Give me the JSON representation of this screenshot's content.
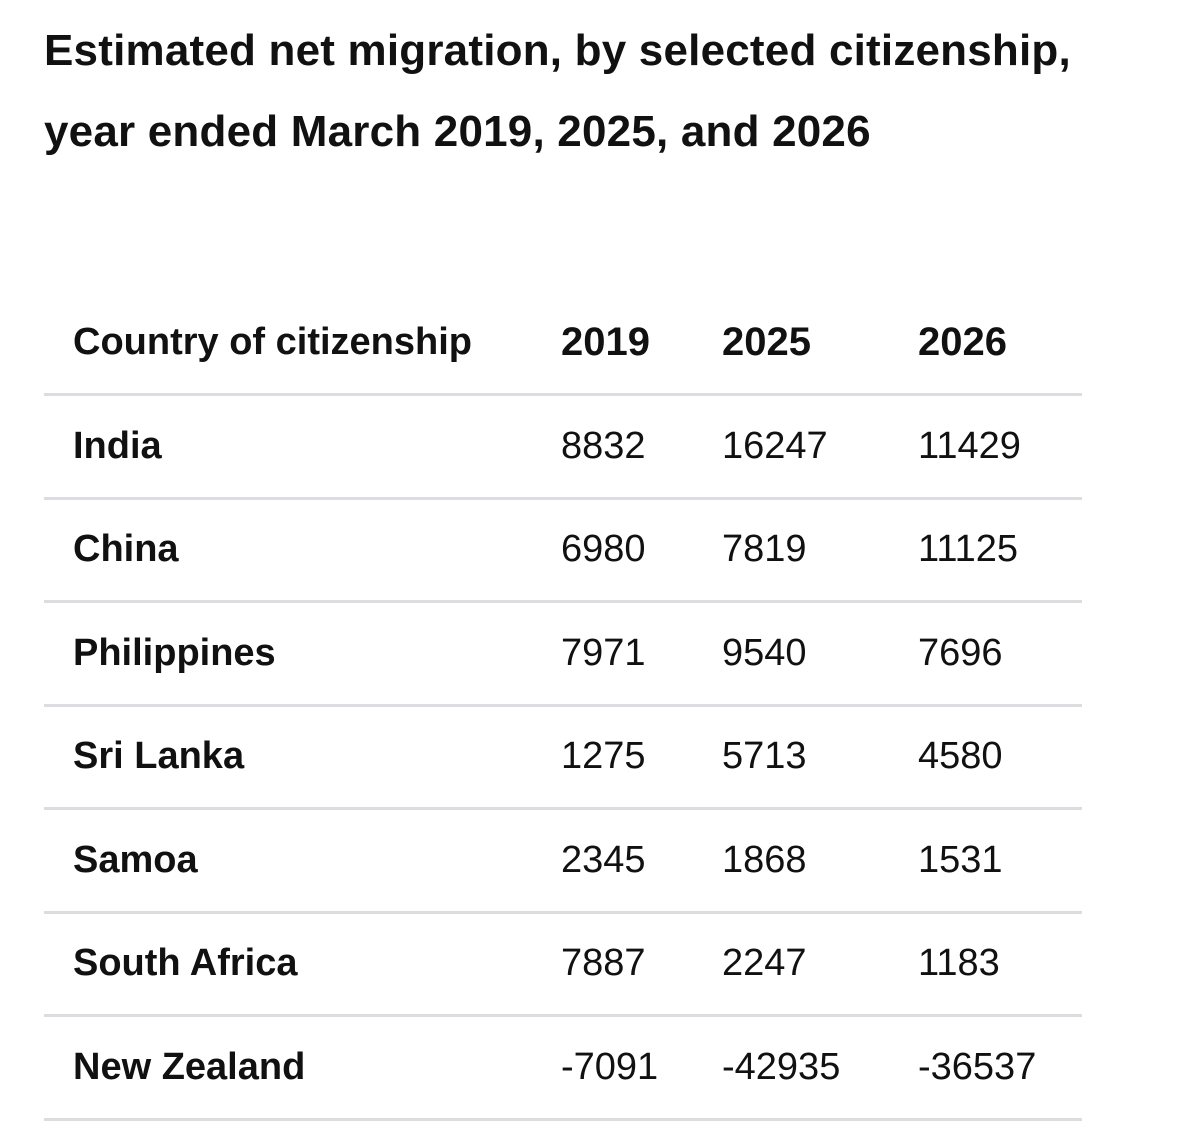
{
  "title": "Estimated net migration, by selected citizenship, year ended March 2019, 2025, and 2026",
  "table": {
    "headers": [
      "Country of citizenship",
      "2019",
      "2025",
      "2026"
    ],
    "rows": [
      {
        "country": "India",
        "values": [
          "8832",
          "16247",
          "11429"
        ]
      },
      {
        "country": "China",
        "values": [
          "6980",
          "7819",
          "11125"
        ]
      },
      {
        "country": "Philippines",
        "values": [
          "7971",
          "9540",
          "7696"
        ]
      },
      {
        "country": "Sri Lanka",
        "values": [
          "1275",
          "5713",
          "4580"
        ]
      },
      {
        "country": "Samoa",
        "values": [
          "2345",
          "1868",
          "1531"
        ]
      },
      {
        "country": "South Africa",
        "values": [
          "7887",
          "2247",
          "1183"
        ]
      },
      {
        "country": "New Zealand",
        "values": [
          "-7091",
          "-42935",
          "-36537"
        ]
      }
    ]
  }
}
